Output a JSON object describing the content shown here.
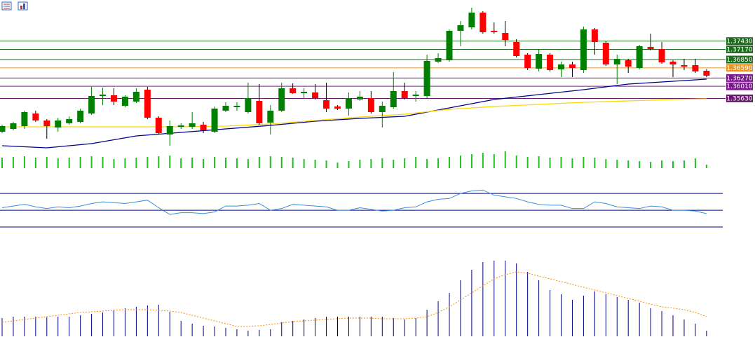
{
  "chart_data": {
    "type": "candlestick",
    "ylim": [
      1.341,
      1.3872
    ],
    "up_color": "#008000",
    "down_color": "#ff0000",
    "open": [
      1.34584,
      1.34672,
      1.3476,
      1.35156,
      1.34936,
      1.34716,
      1.34848,
      1.34892,
      1.35156,
      1.35706,
      1.35728,
      1.35398,
      1.3553,
      1.35904,
      1.35024,
      1.34496,
      1.34738,
      1.34738,
      1.34804,
      1.34584,
      1.35244,
      1.35354,
      1.352,
      1.35552,
      1.3487,
      1.35244,
      1.35948,
      1.35794,
      1.35816,
      1.35574,
      1.35376,
      1.3531,
      1.35596,
      1.3564,
      1.352,
      1.35354,
      1.3586,
      1.35706,
      1.35706,
      1.36784,
      1.36828,
      1.37752,
      1.37862,
      1.38324,
      1.37752,
      1.37686,
      1.374,
      1.37004,
      1.36564,
      1.37004,
      1.36542,
      1.36696,
      1.3652,
      1.37796,
      1.37378,
      1.36696,
      1.36828,
      1.36586,
      1.37246,
      1.3718,
      1.36784,
      1.36674,
      1.36674,
      1.36498
    ],
    "high": [
      1.34804,
      1.34892,
      1.35244,
      1.35244,
      1.3498,
      1.35024,
      1.35068,
      1.3531,
      1.35992,
      1.3597,
      1.35948,
      1.35728,
      1.35948,
      1.35992,
      1.35068,
      1.34936,
      1.34848,
      1.352,
      1.34892,
      1.35376,
      1.35508,
      1.35508,
      1.36124,
      1.3608,
      1.3542,
      1.36124,
      1.36102,
      1.35948,
      1.3608,
      1.36124,
      1.3542,
      1.35816,
      1.3586,
      1.3586,
      1.3553,
      1.36454,
      1.36124,
      1.3586,
      1.37004,
      1.37048,
      1.37796,
      1.3806,
      1.38478,
      1.38368,
      1.38016,
      1.3806,
      1.37488,
      1.37048,
      1.3718,
      1.37048,
      1.36784,
      1.36784,
      1.37884,
      1.3784,
      1.37422,
      1.37004,
      1.36872,
      1.37312,
      1.37664,
      1.374,
      1.36828,
      1.36872,
      1.36872,
      1.36542
    ],
    "low": [
      1.3454,
      1.34628,
      1.34672,
      1.34892,
      1.34364,
      1.34584,
      1.34804,
      1.34848,
      1.35112,
      1.3542,
      1.3542,
      1.35354,
      1.35486,
      1.3498,
      1.34496,
      1.34144,
      1.34672,
      1.34672,
      1.3454,
      1.3454,
      1.352,
      1.35244,
      1.35156,
      1.34804,
      1.34496,
      1.352,
      1.35772,
      1.3564,
      1.35596,
      1.352,
      1.35266,
      1.3509,
      1.35552,
      1.35156,
      1.34716,
      1.3531,
      1.35596,
      1.3553,
      1.3564,
      1.3674,
      1.36784,
      1.37268,
      1.37796,
      1.37664,
      1.37664,
      1.37268,
      1.36916,
      1.3652,
      1.36476,
      1.36476,
      1.363,
      1.363,
      1.36432,
      1.37004,
      1.36652,
      1.3608,
      1.36432,
      1.36542,
      1.37136,
      1.36718,
      1.363,
      1.3652,
      1.36432,
      1.363
    ],
    "close": [
      1.3476,
      1.34848,
      1.352,
      1.34936,
      1.3476,
      1.34936,
      1.3498,
      1.35244,
      1.35706,
      1.3575,
      1.3553,
      1.35684,
      1.35838,
      1.35024,
      1.3454,
      1.3476,
      1.34782,
      1.34848,
      1.34628,
      1.3531,
      1.35398,
      1.35398,
      1.3564,
      1.34848,
      1.35244,
      1.35948,
      1.35794,
      1.35838,
      1.3564,
      1.3531,
      1.3531,
      1.3564,
      1.35684,
      1.352,
      1.35398,
      1.3586,
      1.3564,
      1.3575,
      1.36806,
      1.36894,
      1.37752,
      1.37928,
      1.38324,
      1.37708,
      1.37708,
      1.37466,
      1.3696,
      1.36586,
      1.37026,
      1.3652,
      1.36696,
      1.36586,
      1.37796,
      1.374,
      1.36696,
      1.36872,
      1.3663,
      1.37268,
      1.3718,
      1.36762,
      1.36696,
      1.3663,
      1.36476,
      1.36344
    ],
    "moving_averages": [
      {
        "color": "#00008b",
        "x": [
          0,
          4,
          8,
          12,
          16,
          20,
          24,
          28,
          32,
          36,
          40,
          44,
          48,
          52,
          56,
          60,
          63
        ],
        "values": [
          1.34144,
          1.34078,
          1.3421,
          1.34452,
          1.34562,
          1.34672,
          1.34782,
          1.34914,
          1.35002,
          1.35068,
          1.35332,
          1.35596,
          1.3575,
          1.35904,
          1.3608,
          1.36168,
          1.36234
        ]
      },
      {
        "color": "#ffd700",
        "x": [
          0,
          4,
          8,
          12,
          16,
          20,
          24,
          28,
          32,
          36,
          40,
          44,
          48,
          52,
          56,
          60,
          63
        ],
        "values": [
          1.34738,
          1.34738,
          1.34738,
          1.34738,
          1.34738,
          1.3476,
          1.34826,
          1.34936,
          1.35046,
          1.35134,
          1.35288,
          1.35376,
          1.35442,
          1.35508,
          1.35552,
          1.35596,
          1.35618
        ]
      }
    ],
    "levels": [
      {
        "value": 1.3743,
        "label": "1.37430",
        "color": "#1f6b1f"
      },
      {
        "value": 1.3717,
        "label": "1.37170",
        "color": "#1f6b1f"
      },
      {
        "value": 1.3685,
        "label": "1.36850",
        "color": "#1f6b1f"
      },
      {
        "value": 1.3659,
        "label": "1.36590",
        "color": "#e8962a"
      },
      {
        "value": 1.3627,
        "label": "1.36270",
        "color": "#7a1a8c"
      },
      {
        "value": 1.3601,
        "label": "1.36010",
        "color": "#7a1a8c"
      },
      {
        "value": 1.3563,
        "label": "1.35630",
        "color": "#6a1a6e"
      }
    ],
    "volume": {
      "color": "#22c022",
      "ylim": [
        0,
        30
      ],
      "values": [
        15,
        16,
        17,
        15,
        16,
        14,
        15,
        16,
        17,
        16,
        13,
        14,
        15,
        16,
        17,
        18,
        14,
        15,
        13,
        16,
        15,
        14,
        13,
        16,
        17,
        16,
        15,
        13,
        12,
        11,
        8,
        10,
        12,
        13,
        14,
        12,
        14,
        16,
        13,
        14,
        16,
        18,
        20,
        22,
        20,
        24,
        18,
        16,
        17,
        15,
        16,
        14,
        16,
        15,
        13,
        12,
        11,
        10,
        9,
        11,
        10,
        11,
        14,
        5
      ]
    },
    "rsi": {
      "color": "#3a8fd8",
      "level_color": "#000080",
      "ylim": [
        25,
        96
      ],
      "levels": [
        70,
        50,
        30
      ],
      "values": [
        53,
        55,
        57,
        54,
        52,
        54,
        53,
        55,
        58,
        60,
        59,
        58,
        60,
        62,
        53,
        45,
        47,
        47,
        46,
        48,
        55,
        55,
        56,
        58,
        50,
        52,
        57,
        56,
        55,
        54,
        50,
        50,
        53,
        51,
        49,
        50,
        53,
        54,
        60,
        63,
        64,
        70,
        73,
        74,
        68,
        66,
        64,
        60,
        57,
        56,
        56,
        52,
        52,
        60,
        58,
        54,
        53,
        52,
        55,
        54,
        50,
        50,
        49,
        46
      ]
    },
    "macd": {
      "hist_color": "#000080",
      "signal_color": "#ff8c00",
      "ylim": [
        0,
        120
      ],
      "histogram": [
        26,
        28,
        28,
        28,
        27,
        28,
        28,
        30,
        32,
        34,
        38,
        40,
        42,
        44,
        45,
        35,
        22,
        18,
        15,
        14,
        12,
        10,
        8,
        9,
        10,
        20,
        22,
        24,
        26,
        28,
        28,
        28,
        28,
        28,
        28,
        26,
        24,
        26,
        38,
        50,
        62,
        80,
        95,
        106,
        108,
        108,
        104,
        92,
        80,
        66,
        60,
        52,
        58,
        64,
        60,
        56,
        52,
        48,
        40,
        36,
        30,
        24,
        18,
        8
      ],
      "signal": [
        20,
        22,
        24,
        26,
        28,
        30,
        32,
        34,
        35,
        36,
        37,
        38,
        38,
        38,
        37,
        36,
        34,
        30,
        26,
        22,
        18,
        14,
        14,
        15,
        17,
        19,
        21,
        22,
        23,
        24,
        25,
        26,
        26,
        26,
        25,
        25,
        25,
        26,
        28,
        34,
        42,
        52,
        62,
        72,
        82,
        88,
        92,
        90,
        86,
        82,
        78,
        74,
        70,
        66,
        62,
        58,
        54,
        50,
        46,
        42,
        40,
        38,
        34,
        28
      ]
    }
  }
}
